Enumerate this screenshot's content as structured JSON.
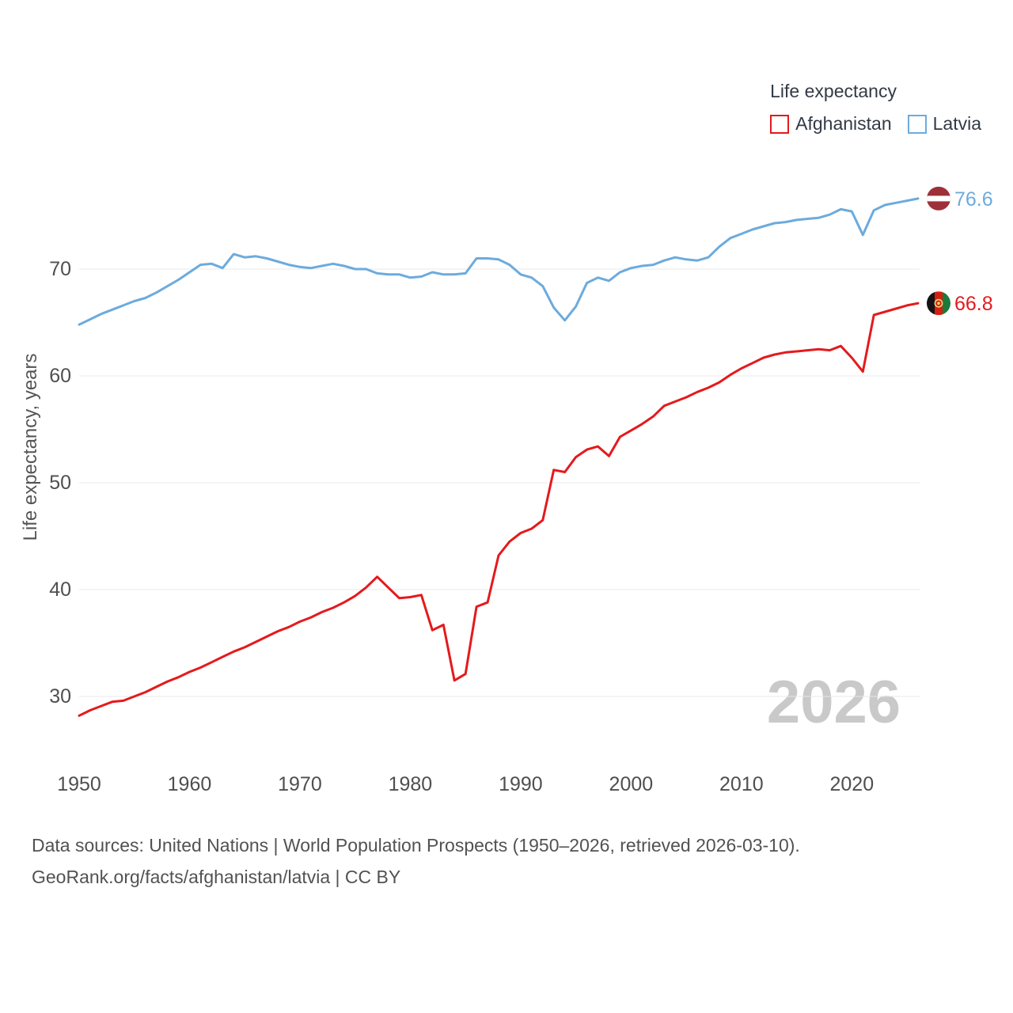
{
  "legend": {
    "title": "Life expectancy",
    "items": [
      {
        "label": "Afghanistan",
        "color": "#e41a1c"
      },
      {
        "label": "Latvia",
        "color": "#6cabdd"
      }
    ]
  },
  "watermark": "2026",
  "footer": {
    "line1": "Data sources: United Nations | World Population Prospects (1950–2026, retrieved 2026-03-10).",
    "line2": "GeoRank.org/facts/afghanistan/latvia | CC BY"
  },
  "flags": {
    "latvia": {
      "colors": [
        "#9E3039",
        "#FFFFFF"
      ]
    },
    "afghanistan": {
      "colors": [
        "#141414",
        "#D32011",
        "#1e7a3c",
        "#f3d27a"
      ]
    }
  },
  "chart_data": {
    "type": "line",
    "title": "Life expectancy",
    "xlabel": "",
    "ylabel": "Life expectancy, years",
    "grid": true,
    "legend_position": "top-right",
    "xlim": [
      1950,
      2026
    ],
    "ylim": [
      26,
      80
    ],
    "x_ticks": [
      1950,
      1960,
      1970,
      1980,
      1990,
      2000,
      2010,
      2020
    ],
    "y_ticks": [
      30,
      40,
      50,
      60,
      70
    ],
    "x": [
      1950,
      1951,
      1952,
      1953,
      1954,
      1955,
      1956,
      1957,
      1958,
      1959,
      1960,
      1961,
      1962,
      1963,
      1964,
      1965,
      1966,
      1967,
      1968,
      1969,
      1970,
      1971,
      1972,
      1973,
      1974,
      1975,
      1976,
      1977,
      1978,
      1979,
      1980,
      1981,
      1982,
      1983,
      1984,
      1985,
      1986,
      1987,
      1988,
      1989,
      1990,
      1991,
      1992,
      1993,
      1994,
      1995,
      1996,
      1997,
      1998,
      1999,
      2000,
      2001,
      2002,
      2003,
      2004,
      2005,
      2006,
      2007,
      2008,
      2009,
      2010,
      2011,
      2012,
      2013,
      2014,
      2015,
      2016,
      2017,
      2018,
      2019,
      2020,
      2021,
      2022,
      2023,
      2024,
      2025,
      2026
    ],
    "series": [
      {
        "name": "Afghanistan",
        "color": "#e41a1c",
        "end_label": "66.8",
        "flag": "afghanistan",
        "values": [
          28.2,
          28.7,
          29.1,
          29.5,
          29.6,
          30.0,
          30.4,
          30.9,
          31.4,
          31.8,
          32.3,
          32.7,
          33.2,
          33.7,
          34.2,
          34.6,
          35.1,
          35.6,
          36.1,
          36.5,
          37.0,
          37.4,
          37.9,
          38.3,
          38.8,
          39.4,
          40.2,
          41.2,
          40.2,
          39.2,
          39.3,
          39.5,
          36.2,
          36.7,
          31.5,
          32.1,
          38.4,
          38.8,
          43.2,
          44.5,
          45.3,
          45.7,
          46.5,
          51.2,
          51.0,
          52.4,
          53.1,
          53.4,
          52.5,
          54.3,
          54.9,
          55.5,
          56.2,
          57.2,
          57.6,
          58.0,
          58.5,
          58.9,
          59.4,
          60.1,
          60.7,
          61.2,
          61.7,
          62.0,
          62.2,
          62.3,
          62.4,
          62.5,
          62.4,
          62.8,
          61.7,
          60.4,
          65.7,
          66.0,
          66.3,
          66.6,
          66.8
        ]
      },
      {
        "name": "Latvia",
        "color": "#6cabdd",
        "end_label": "76.6",
        "flag": "latvia",
        "values": [
          64.8,
          65.3,
          65.8,
          66.2,
          66.6,
          67.0,
          67.3,
          67.8,
          68.4,
          69.0,
          69.7,
          70.4,
          70.5,
          70.1,
          71.4,
          71.1,
          71.2,
          71.0,
          70.7,
          70.4,
          70.2,
          70.1,
          70.3,
          70.5,
          70.3,
          70.0,
          70.0,
          69.6,
          69.5,
          69.5,
          69.2,
          69.3,
          69.7,
          69.5,
          69.5,
          69.6,
          71.0,
          71.0,
          70.9,
          70.4,
          69.5,
          69.2,
          68.4,
          66.4,
          65.2,
          66.5,
          68.7,
          69.2,
          68.9,
          69.7,
          70.1,
          70.3,
          70.4,
          70.8,
          71.1,
          70.9,
          70.8,
          71.1,
          72.1,
          72.9,
          73.3,
          73.7,
          74.0,
          74.3,
          74.4,
          74.6,
          74.7,
          74.8,
          75.1,
          75.6,
          75.4,
          73.2,
          75.5,
          76.0,
          76.2,
          76.4,
          76.6
        ]
      }
    ]
  }
}
